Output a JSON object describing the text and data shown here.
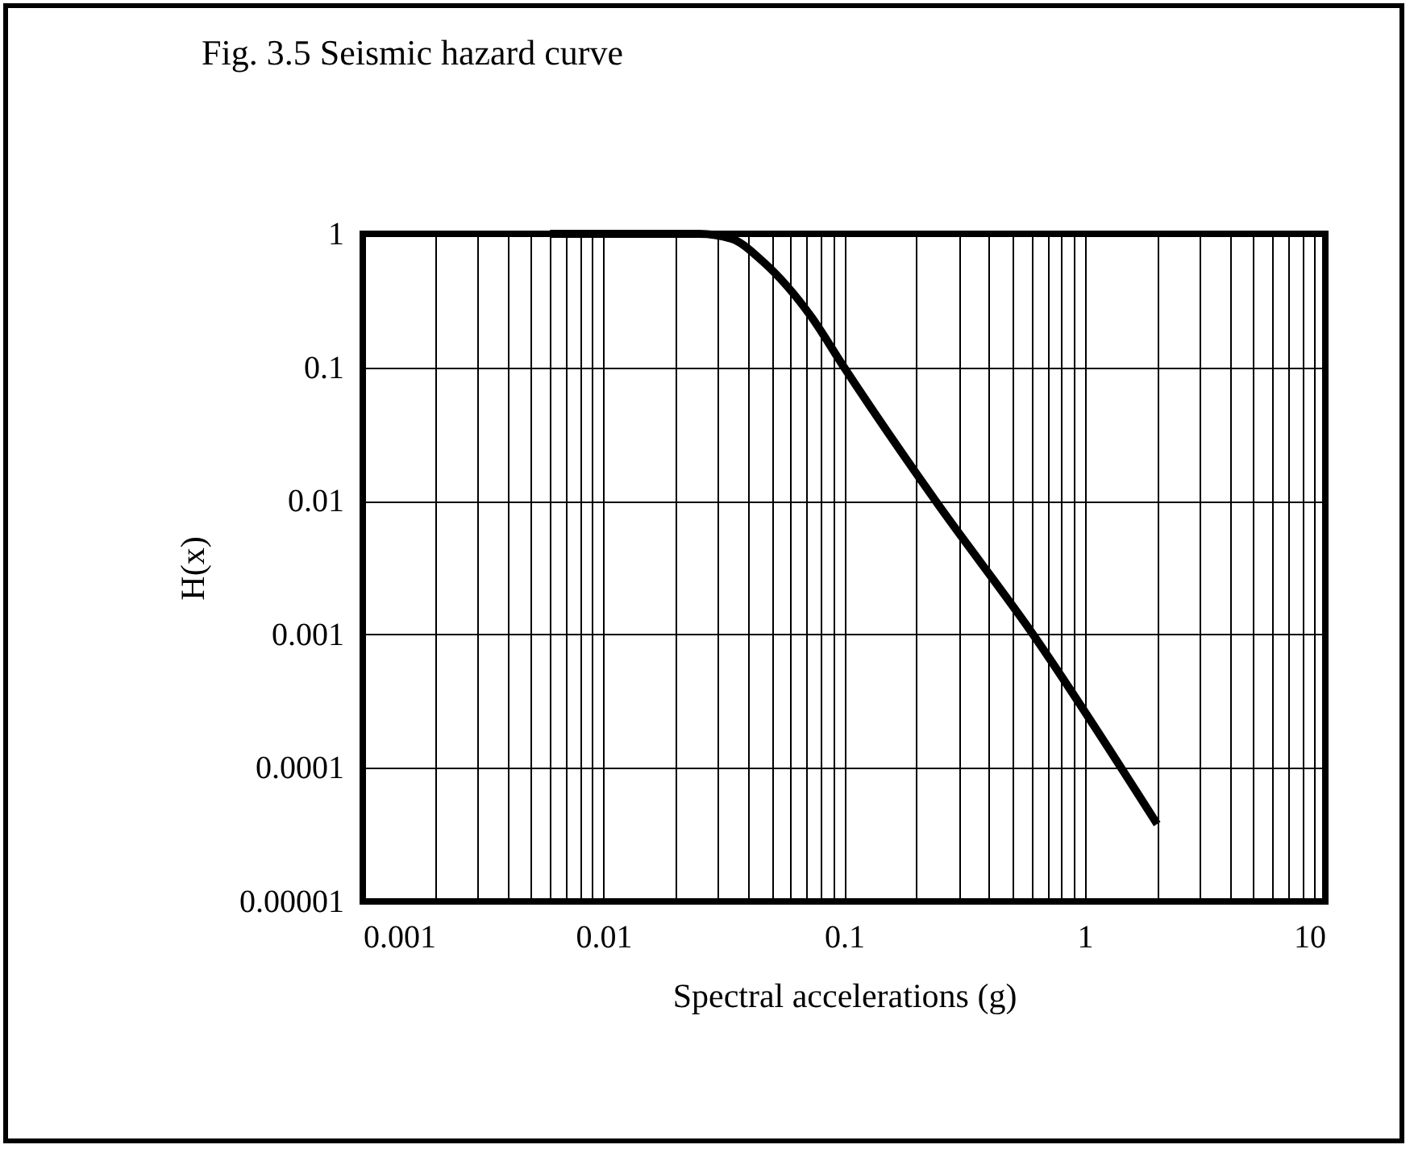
{
  "chart_data": {
    "type": "line",
    "title": "Fig. 3.5 Seismic hazard curve",
    "xlabel": "Spectral accelerations (g)",
    "ylabel": "H(x)",
    "log": "xy",
    "grid": true,
    "marker": "none",
    "line_style": "solid",
    "xlim": [
      0.001,
      10
    ],
    "ylim": [
      1e-05,
      1
    ],
    "xticks": [
      0.001,
      {
        "value": 0.002,
        "label": null
      },
      {
        "value": 0.003,
        "label": null
      },
      {
        "value": 0.004,
        "label": null
      },
      {
        "value": 0.005,
        "label": null
      },
      {
        "value": 0.006,
        "label": null
      },
      {
        "value": 0.007,
        "label": null
      },
      {
        "value": 0.008,
        "label": null
      },
      {
        "value": 0.009,
        "label": null
      },
      0.01,
      {
        "value": 0.02,
        "label": null
      },
      {
        "value": 0.03,
        "label": null
      },
      {
        "value": 0.04,
        "label": null
      },
      {
        "value": 0.05,
        "label": null
      },
      {
        "value": 0.06,
        "label": null
      },
      {
        "value": 0.07,
        "label": null
      },
      {
        "value": 0.08,
        "label": null
      },
      {
        "value": 0.09,
        "label": null
      },
      0.1,
      {
        "value": 0.2,
        "label": null
      },
      {
        "value": 0.3,
        "label": null
      },
      {
        "value": 0.4,
        "label": null
      },
      {
        "value": 0.5,
        "label": null
      },
      {
        "value": 0.6,
        "label": null
      },
      {
        "value": 0.7,
        "label": null
      },
      {
        "value": 0.8,
        "label": null
      },
      {
        "value": 0.9,
        "label": null
      },
      1,
      {
        "value": 2,
        "label": null
      },
      {
        "value": 3,
        "label": null
      },
      {
        "value": 4,
        "label": null
      },
      {
        "value": 5,
        "label": null
      },
      {
        "value": 6,
        "label": null
      },
      {
        "value": 7,
        "label": null
      },
      {
        "value": 8,
        "label": null
      },
      {
        "value": 9,
        "label": null
      },
      10
    ],
    "yticks": [
      {
        "value": 1e-05,
        "label": "0.00001"
      },
      0.0001,
      0.001,
      0.01,
      0.1,
      1
    ],
    "x": [
      0.006,
      0.02,
      0.025,
      0.034,
      0.046,
      0.073,
      0.1,
      0.24,
      0.61,
      2.0
    ],
    "series": [
      {
        "color": "#000000",
        "values": [
          1,
          1,
          1,
          0.92,
          0.62,
          0.24,
          0.1,
          0.01,
          0.001,
          3.8e-05
        ]
      }
    ]
  }
}
